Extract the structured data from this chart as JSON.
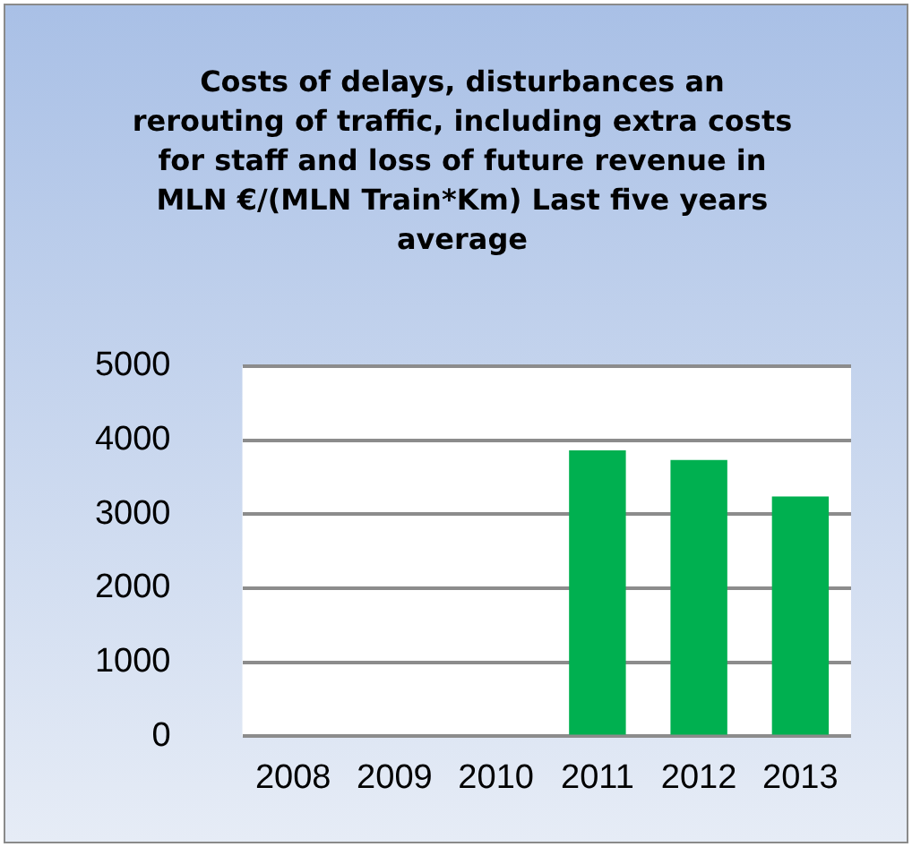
{
  "chart_data": {
    "type": "bar",
    "title": "Costs of delays, disturbances an rerouting of traffic, including extra costs for staff and loss of future revenue in MLN €/(MLN Train*Km)    Last five years average",
    "categories": [
      "2008",
      "2009",
      "2010",
      "2011",
      "2012",
      "2013"
    ],
    "values": [
      null,
      null,
      null,
      3860,
      3730,
      3240
    ],
    "color": "#00b050",
    "ylim": [
      0,
      5000
    ],
    "yticks": [
      0,
      1000,
      2000,
      3000,
      4000,
      5000
    ],
    "grid": "y",
    "legend": false
  }
}
